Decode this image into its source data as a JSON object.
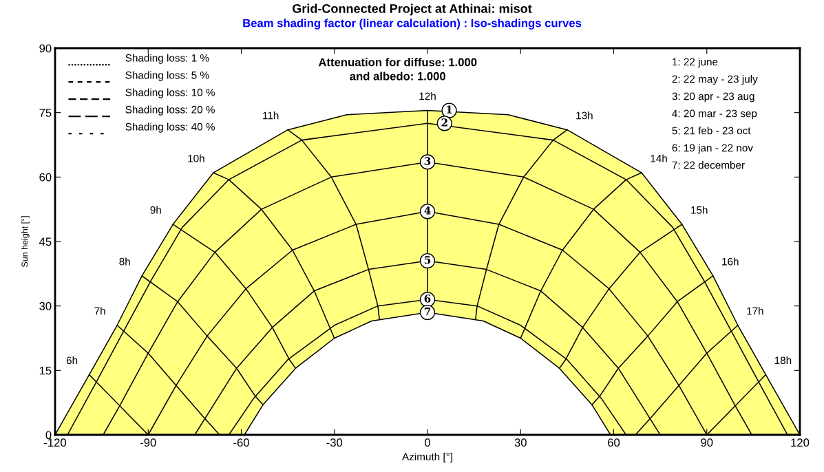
{
  "chart_data": {
    "type": "line",
    "title": "Grid-Connected Project at Athinai: misot",
    "subtitle": "Beam shading factor (linear calculation) : Iso-shadings curves",
    "xlabel": "Azimuth [°]",
    "ylabel": "Sun height [°]",
    "xlim": [
      -120,
      120
    ],
    "ylim": [
      0,
      90
    ],
    "xticks": [
      -120,
      -90,
      -60,
      -30,
      0,
      30,
      60,
      90,
      120
    ],
    "yticks": [
      0,
      15,
      30,
      45,
      60,
      75,
      90
    ],
    "grid": false,
    "marker": "none",
    "line_style": "solid",
    "series": [
      {
        "type": "area",
        "color": "#ffff80",
        "x": [
          -120,
          -109,
          -100,
          -92,
          -82,
          -69,
          -45,
          -26,
          0,
          26,
          45,
          69,
          82,
          92,
          100,
          109,
          120
        ],
        "values": [
          0,
          14,
          25.5,
          37,
          49,
          61,
          71,
          74.5,
          75.5,
          74.5,
          71,
          61,
          49,
          37,
          25.5,
          14,
          0
        ]
      },
      {
        "color": "#000000",
        "x": [
          -116,
          -106.5,
          -98,
          -89,
          -79,
          -64,
          -40.5,
          0,
          40.5,
          64,
          79,
          89,
          98,
          106.5,
          116
        ],
        "values": [
          0,
          12.6,
          24,
          36,
          48.3,
          59.4,
          68.6,
          72.5,
          68.6,
          59.4,
          48.3,
          36,
          24,
          12.6,
          0
        ]
      },
      {
        "color": "#000000",
        "x": [
          -104.5,
          -99,
          -90,
          -80.5,
          -68.5,
          -53.5,
          -31,
          0,
          31,
          53.5,
          68.5,
          80.5,
          90,
          99,
          104.5
        ],
        "values": [
          0,
          7,
          19,
          31,
          42.5,
          52.5,
          60,
          63.5,
          60,
          52.5,
          42.5,
          31,
          19,
          7,
          0
        ]
      },
      {
        "color": "#000000",
        "x": [
          -90,
          -81,
          -71,
          -58.5,
          -43.5,
          -23,
          0,
          23,
          43.5,
          58.5,
          71,
          81,
          90
        ],
        "values": [
          0,
          11.5,
          23,
          34,
          43,
          49,
          52,
          49,
          43,
          34,
          23,
          11.5,
          0
        ]
      },
      {
        "color": "#000000",
        "x": [
          -75,
          -61.5,
          -50,
          -36.5,
          -19,
          0,
          19,
          36.5,
          50,
          61.5,
          75
        ],
        "values": [
          0,
          15.5,
          25,
          33.5,
          38.5,
          40.5,
          38.5,
          33.5,
          25,
          15.5,
          0
        ]
      },
      {
        "color": "#000000",
        "x": [
          -64,
          -56,
          -45,
          -30,
          -16,
          0,
          16,
          30,
          45,
          56,
          64
        ],
        "values": [
          0,
          8.5,
          17.5,
          25.5,
          30,
          31.5,
          30,
          25.5,
          17.5,
          8.5,
          0
        ]
      },
      {
        "type": "area",
        "color": "#ffffff",
        "x": [
          -59,
          -53,
          -42.5,
          -30,
          -18,
          0,
          18,
          30,
          42.5,
          53,
          59
        ],
        "values": [
          0,
          7,
          15.5,
          22.5,
          26.5,
          28.5,
          26.5,
          22.5,
          15.5,
          7,
          0
        ]
      },
      {
        "color": "#000000",
        "x": [
          -109,
          -99.5,
          -90
        ],
        "values": [
          14,
          7,
          0
        ]
      },
      {
        "color": "#000000",
        "x": [
          -100,
          -90,
          -81,
          -72,
          -67
        ],
        "values": [
          25.5,
          19,
          11.5,
          4,
          0
        ]
      },
      {
        "color": "#000000",
        "x": [
          -92,
          -80.5,
          -71,
          -61.5,
          -55.5,
          -53
        ],
        "values": [
          37,
          31,
          23,
          15.5,
          9,
          7
        ]
      },
      {
        "color": "#000000",
        "x": [
          -82,
          -68.5,
          -58.5,
          -50,
          -44.5,
          -42.5
        ],
        "values": [
          49,
          42.5,
          34,
          25,
          17.5,
          15.5
        ]
      },
      {
        "color": "#000000",
        "x": [
          -69,
          -64,
          -53.5,
          -43.5,
          -36.5,
          -30
        ],
        "values": [
          61,
          59.4,
          52.5,
          43,
          33.5,
          22.5
        ]
      },
      {
        "color": "#000000",
        "x": [
          -45,
          -40.5,
          -31,
          -23,
          -19,
          -16,
          -15.5
        ],
        "values": [
          71,
          68.6,
          60,
          49,
          38.5,
          30,
          27
        ]
      },
      {
        "color": "#000000",
        "x": [
          0,
          0
        ],
        "values": [
          75.5,
          28.5
        ]
      },
      {
        "color": "#000000",
        "x": [
          45,
          40.5,
          31,
          23,
          19,
          16,
          15.5
        ],
        "values": [
          71,
          68.6,
          60,
          49,
          38.5,
          30,
          27
        ]
      },
      {
        "color": "#000000",
        "x": [
          69,
          64,
          53.5,
          43.5,
          36.5,
          30
        ],
        "values": [
          61,
          59.4,
          52.5,
          43,
          33.5,
          22.5
        ]
      },
      {
        "color": "#000000",
        "x": [
          82,
          68.5,
          58.5,
          50,
          44.5,
          42.5
        ],
        "values": [
          49,
          42.5,
          34,
          25,
          17.5,
          15.5
        ]
      },
      {
        "color": "#000000",
        "x": [
          92,
          80.5,
          71,
          61.5,
          55.5,
          53
        ],
        "values": [
          37,
          31,
          23,
          15.5,
          9,
          7
        ]
      },
      {
        "color": "#000000",
        "x": [
          100,
          90,
          81,
          72,
          67
        ],
        "values": [
          25.5,
          19,
          11.5,
          4,
          0
        ]
      },
      {
        "color": "#000000",
        "x": [
          109,
          99.5,
          90
        ],
        "values": [
          14,
          7,
          0
        ]
      }
    ],
    "annotations": [
      "Shading loss: 1 %",
      "Shading loss: 5 %",
      "Shading loss: 10 %",
      "Shading loss: 20 %",
      "Shading loss: 40 %",
      "Attenuation for diffuse: 1.000\nand albedo: 1.000",
      "1: 22 june",
      "2: 22 may - 23 july",
      "3: 20 apr - 23 aug",
      "4: 20 mar - 23 sep",
      "5: 21 feb - 23 oct",
      "6: 19 jan - 22 nov",
      "7: 22 december",
      {
        "text": "6h",
        "x": -109,
        "y": 14
      },
      {
        "text": "7h",
        "x": -100,
        "y": 25.5
      },
      {
        "text": "8h",
        "x": -92,
        "y": 37
      },
      {
        "text": "9h",
        "x": -82,
        "y": 49
      },
      {
        "text": "10h",
        "x": -69,
        "y": 61
      },
      {
        "text": "11h",
        "x": -45,
        "y": 71
      },
      {
        "text": "12h",
        "x": 0,
        "y": 75.5
      },
      {
        "text": "13h",
        "x": 45,
        "y": 71
      },
      {
        "text": "14h",
        "x": 69,
        "y": 61
      },
      {
        "text": "15h",
        "x": 82,
        "y": 49
      },
      {
        "text": "16h",
        "x": 92,
        "y": 37
      },
      {
        "text": "17h",
        "x": 100,
        "y": 25.5
      },
      {
        "text": "18h",
        "x": 109,
        "y": 14
      },
      {
        "text": "1",
        "x": 7,
        "y": 75.5
      },
      {
        "text": "2",
        "x": 5.5,
        "y": 72.5
      },
      {
        "text": "3",
        "x": 0,
        "y": 63.5
      },
      {
        "text": "4",
        "x": 0,
        "y": 52
      },
      {
        "text": "5",
        "x": 0,
        "y": 40.5
      },
      {
        "text": "6",
        "x": 0,
        "y": 31.5
      },
      {
        "text": "7",
        "x": 0,
        "y": 28.5
      }
    ]
  }
}
